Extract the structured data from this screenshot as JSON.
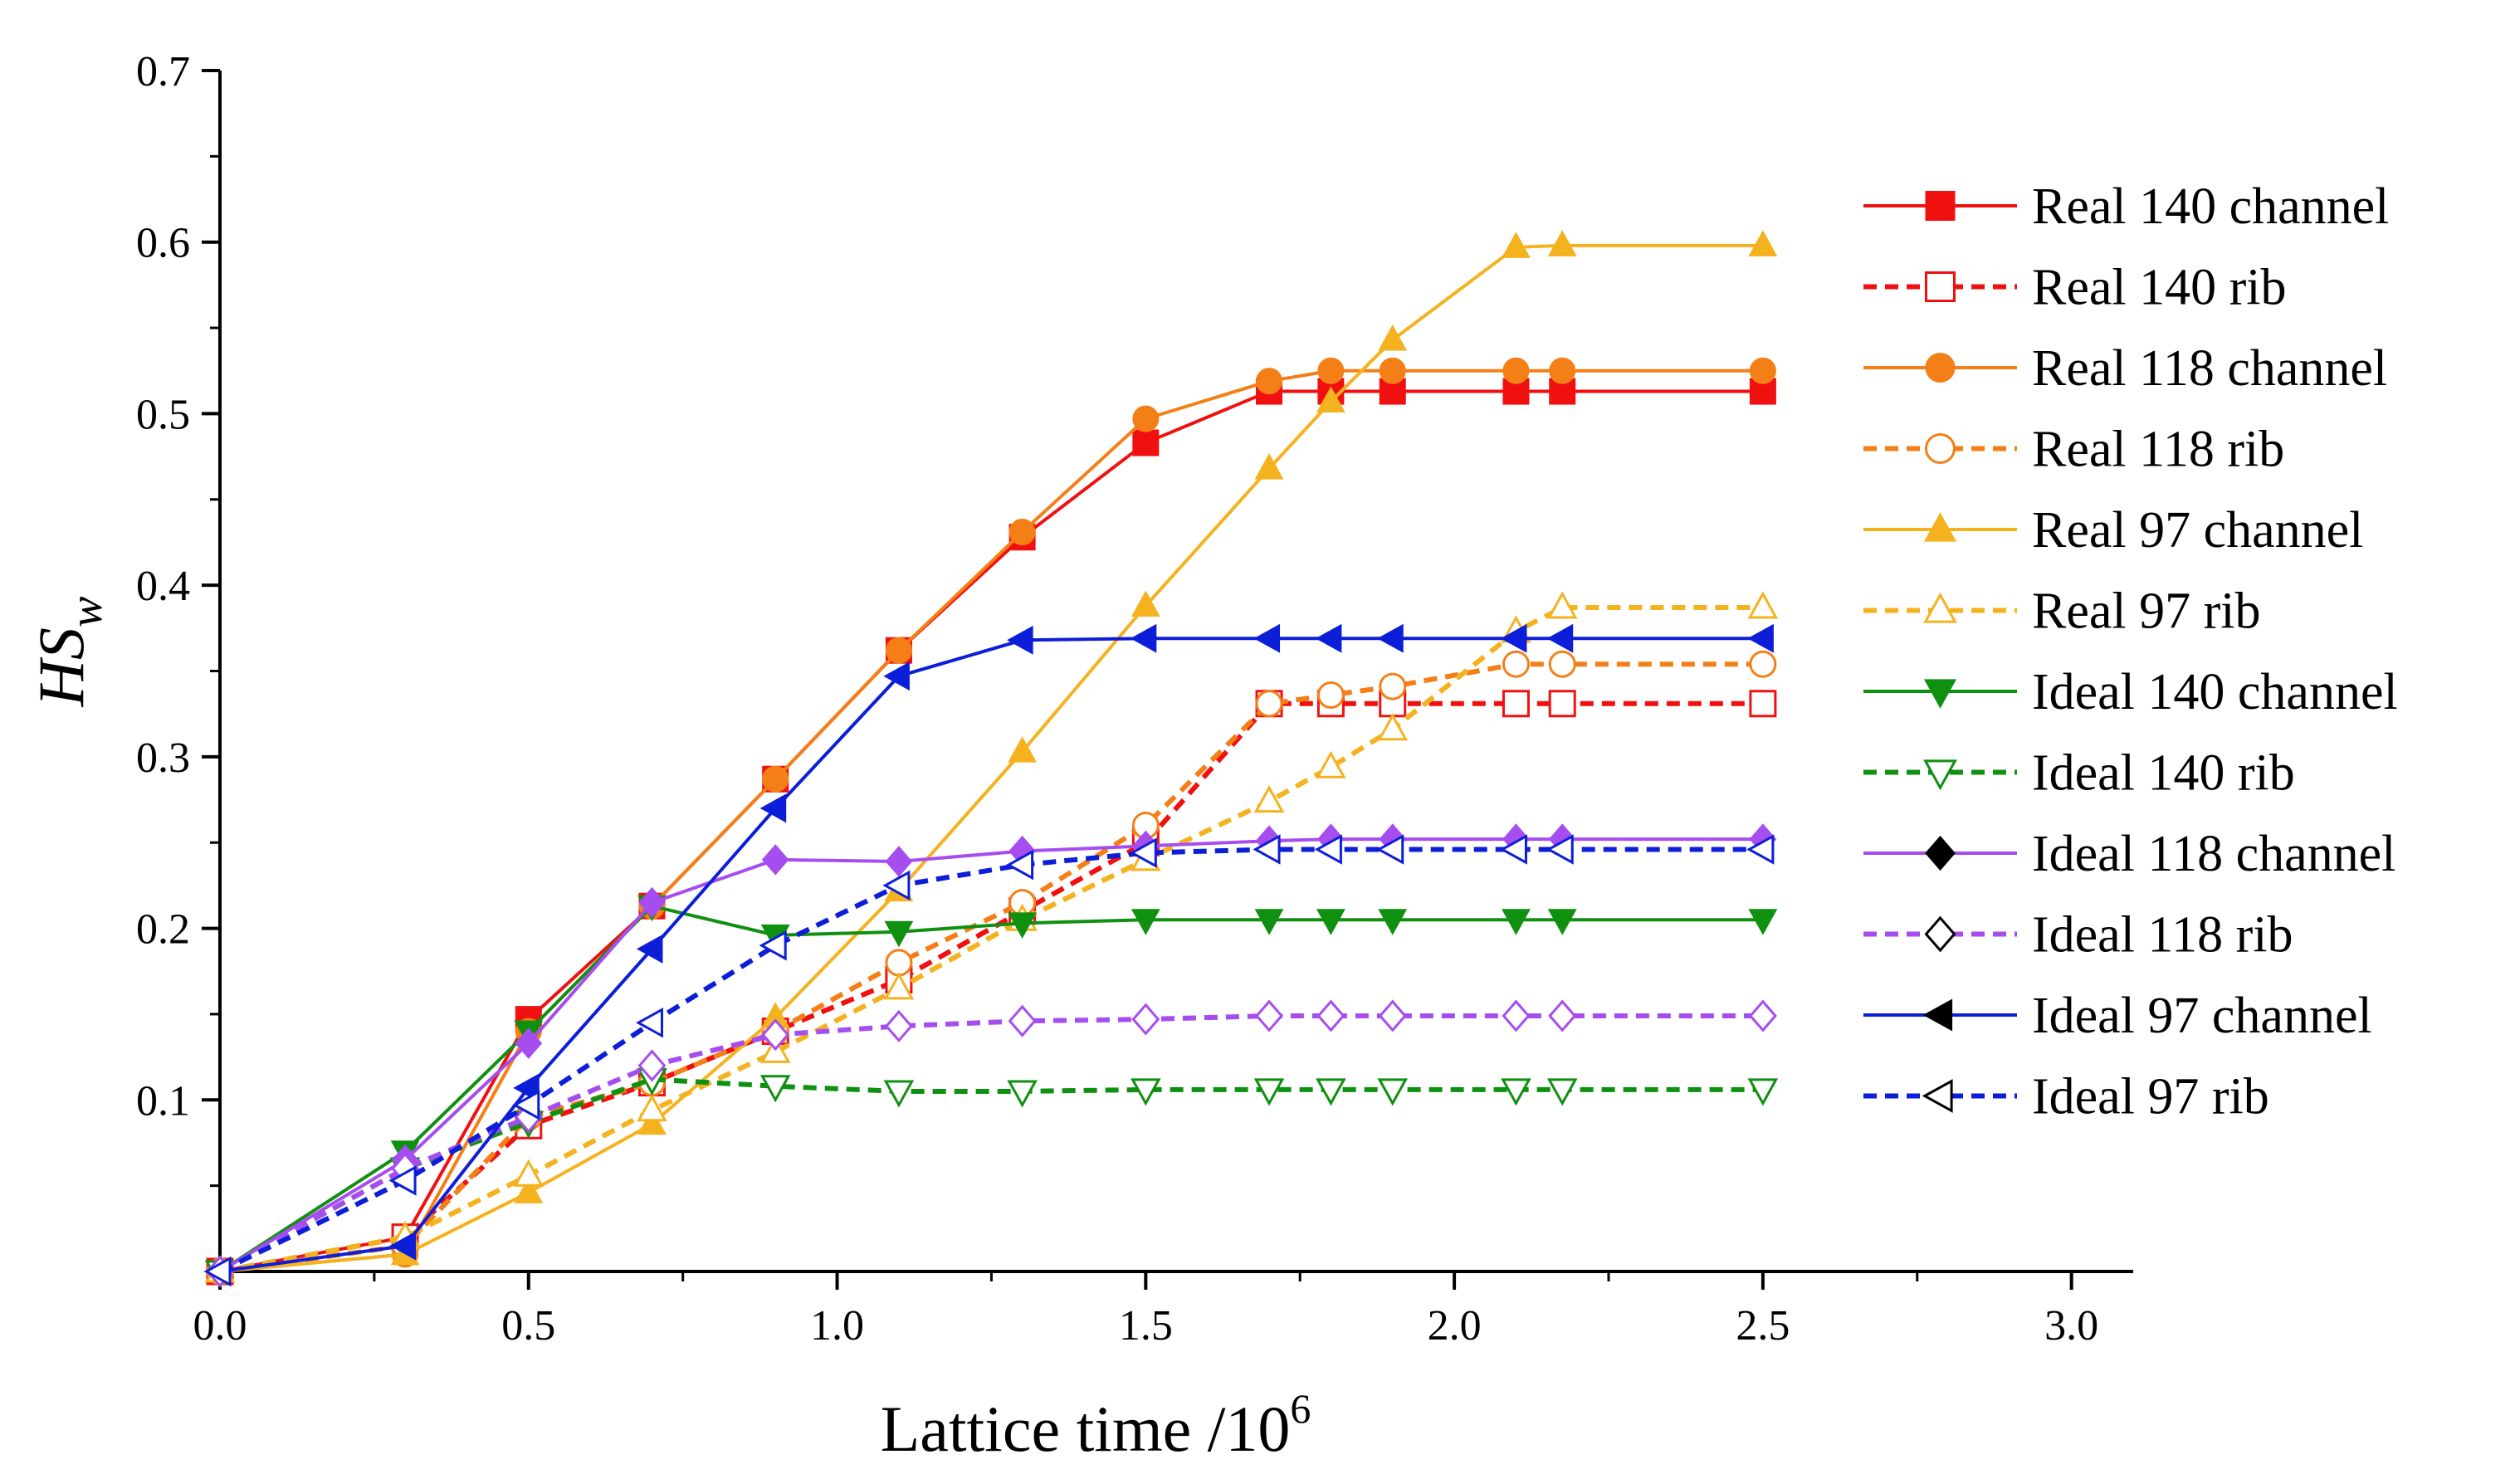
{
  "chart_data": {
    "type": "line",
    "xlabel": "Lattice time /10",
    "xlabel_superscript": "6",
    "ylabel_main": "HS",
    "ylabel_sub": "w",
    "xlim": [
      0,
      3.1
    ],
    "ylim": [
      0,
      0.7
    ],
    "x_ticks": [
      "0.0",
      "0.5",
      "1.0",
      "1.5",
      "2.0",
      "2.5",
      "3.0"
    ],
    "y_ticks": [
      "0.1",
      "0.2",
      "0.3",
      "0.4",
      "0.5",
      "0.6",
      "0.7"
    ],
    "grid": false,
    "legend_position": "right",
    "x": [
      0,
      0.3,
      0.5,
      0.7,
      0.9,
      1.1,
      1.3,
      1.5,
      1.7,
      1.8,
      1.9,
      2.1,
      2.175,
      2.5
    ],
    "series": [
      {
        "name": "Real 140 channel",
        "color": "#f01010",
        "dashed": false,
        "marker": "square",
        "filled": true,
        "values": [
          0,
          0.02,
          0.147,
          0.213,
          0.287,
          0.362,
          0.428,
          0.483,
          0.513,
          0.513,
          0.513,
          0.513,
          0.513,
          0.513
        ]
      },
      {
        "name": "Real 140 rib",
        "color": "#f01010",
        "dashed": true,
        "marker": "square",
        "filled": false,
        "values": [
          0,
          0.02,
          0.085,
          0.11,
          0.14,
          0.17,
          0.21,
          0.25,
          0.331,
          0.331,
          0.331,
          0.331,
          0.331,
          0.331
        ]
      },
      {
        "name": "Real 118 channel",
        "color": "#f57f17",
        "dashed": false,
        "marker": "circle",
        "filled": true,
        "values": [
          0,
          0.01,
          0.14,
          0.213,
          0.287,
          0.362,
          0.431,
          0.497,
          0.519,
          0.525,
          0.525,
          0.525,
          0.525,
          0.525
        ]
      },
      {
        "name": "Real 118 rib",
        "color": "#f57f17",
        "dashed": true,
        "marker": "circle",
        "filled": false,
        "values": [
          0,
          0.015,
          0.09,
          0.11,
          0.14,
          0.18,
          0.215,
          0.26,
          0.331,
          0.336,
          0.341,
          0.354,
          0.354,
          0.354
        ]
      },
      {
        "name": "Real 97 channel",
        "color": "#f5b21f",
        "dashed": false,
        "marker": "triangle-up",
        "filled": true,
        "values": [
          0,
          0.01,
          0.046,
          0.086,
          0.148,
          0.222,
          0.303,
          0.388,
          0.468,
          0.507,
          0.543,
          0.597,
          0.598,
          0.598
        ]
      },
      {
        "name": "Real 97 rib",
        "color": "#f5b21f",
        "dashed": true,
        "marker": "triangle-up",
        "filled": false,
        "values": [
          0,
          0.02,
          0.056,
          0.094,
          0.128,
          0.165,
          0.205,
          0.24,
          0.274,
          0.294,
          0.316,
          0.373,
          0.387,
          0.387
        ]
      },
      {
        "name": "Ideal 140 channel",
        "color": "#109010",
        "dashed": false,
        "marker": "triangle-down",
        "filled": true,
        "values": [
          0,
          0.07,
          0.14,
          0.213,
          0.196,
          0.198,
          0.203,
          0.205,
          0.205,
          0.205,
          0.205,
          0.205,
          0.205,
          0.205
        ]
      },
      {
        "name": "Ideal 140 rib",
        "color": "#109010",
        "dashed": true,
        "marker": "triangle-down",
        "filled": false,
        "values": [
          0,
          0.06,
          0.087,
          0.112,
          0.108,
          0.105,
          0.105,
          0.106,
          0.106,
          0.106,
          0.106,
          0.106,
          0.106,
          0.106
        ]
      },
      {
        "name": "Ideal 118 channel",
        "color": "#a64df0",
        "dashed": false,
        "marker": "diamond",
        "filled": true,
        "values": [
          0,
          0.065,
          0.133,
          0.215,
          0.24,
          0.239,
          0.245,
          0.248,
          0.251,
          0.252,
          0.252,
          0.252,
          0.252,
          0.252
        ]
      },
      {
        "name": "Ideal 118 rib",
        "color": "#a64df0",
        "dashed": true,
        "marker": "diamond",
        "filled": false,
        "values": [
          0,
          0.06,
          0.09,
          0.12,
          0.138,
          0.143,
          0.146,
          0.147,
          0.149,
          0.149,
          0.149,
          0.149,
          0.149,
          0.149
        ]
      },
      {
        "name": "Ideal 97 channel",
        "color": "#0d1ed9",
        "dashed": false,
        "marker": "triangle-left",
        "filled": true,
        "values": [
          0,
          0.015,
          0.107,
          0.188,
          0.27,
          0.347,
          0.368,
          0.369,
          0.369,
          0.369,
          0.369,
          0.369,
          0.369,
          0.369
        ]
      },
      {
        "name": "Ideal 97 rib",
        "color": "#0d1ed9",
        "dashed": true,
        "marker": "triangle-left",
        "filled": false,
        "values": [
          0,
          0.053,
          0.097,
          0.145,
          0.19,
          0.225,
          0.237,
          0.244,
          0.246,
          0.246,
          0.246,
          0.246,
          0.246,
          0.246
        ]
      }
    ]
  }
}
